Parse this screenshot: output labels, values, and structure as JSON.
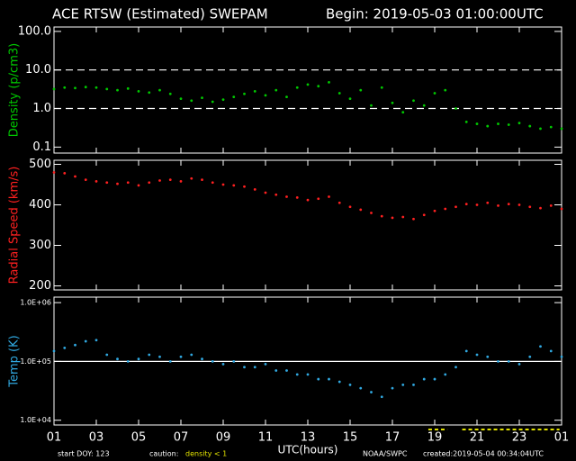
{
  "chart_data": [
    {
      "type": "scatter",
      "title": "ACE RTSW (Estimated) SWEPAM",
      "subtitle": "Begin: 2019-05-03 01:00:00UTC",
      "ylabel": "Density (p/cm3)",
      "scale": "log",
      "color": "#00c800",
      "ylim": [
        0.07,
        130
      ],
      "yticks": [
        0.1,
        {
          "value": 1,
          "label": "1.0"
        },
        {
          "value": 10,
          "label": "10.0"
        },
        {
          "value": 100,
          "label": "100.0"
        }
      ],
      "hlines": [
        10,
        1
      ],
      "hline_style": "dashed",
      "x": [
        1,
        1.5,
        2,
        2.5,
        3,
        3.5,
        4,
        4.5,
        5,
        5.5,
        6,
        6.5,
        7,
        7.5,
        8,
        8.5,
        9,
        9.5,
        10,
        10.5,
        11,
        11.5,
        12,
        12.5,
        13,
        13.5,
        14,
        14.5,
        15,
        15.5,
        16,
        16.5,
        17,
        17.5,
        18,
        18.5,
        19,
        19.5,
        20,
        20.5,
        21,
        21.5,
        22,
        22.5,
        23,
        23.5,
        24,
        24.5,
        25
      ],
      "values": [
        3.2,
        3.5,
        3.4,
        3.6,
        3.5,
        3.2,
        3.0,
        3.3,
        2.8,
        2.6,
        3.0,
        2.4,
        1.8,
        1.6,
        1.9,
        1.5,
        1.7,
        2.0,
        2.4,
        2.8,
        2.2,
        3.0,
        2.0,
        3.5,
        4.2,
        3.8,
        4.8,
        2.5,
        1.8,
        3.0,
        1.2,
        3.5,
        1.4,
        0.8,
        1.6,
        1.2,
        2.5,
        3.0,
        1.0,
        0.45,
        0.4,
        0.35,
        0.4,
        0.38,
        0.42,
        0.35,
        0.3,
        0.33,
        0.3
      ]
    },
    {
      "type": "scatter",
      "ylabel": "Radial Speed (km/s)",
      "scale": "linear",
      "color": "#ff2020",
      "ylim": [
        190,
        510
      ],
      "yticks": [
        200,
        300,
        400,
        500
      ],
      "x": [
        1,
        1.5,
        2,
        2.5,
        3,
        3.5,
        4,
        4.5,
        5,
        5.5,
        6,
        6.5,
        7,
        7.5,
        8,
        8.5,
        9,
        9.5,
        10,
        10.5,
        11,
        11.5,
        12,
        12.5,
        13,
        13.5,
        14,
        14.5,
        15,
        15.5,
        16,
        16.5,
        17,
        17.5,
        18,
        18.5,
        19,
        19.5,
        20,
        20.5,
        21,
        21.5,
        22,
        22.5,
        23,
        23.5,
        24,
        24.5,
        25
      ],
      "values": [
        480,
        478,
        470,
        462,
        458,
        455,
        452,
        455,
        448,
        455,
        460,
        462,
        458,
        465,
        462,
        455,
        450,
        448,
        445,
        438,
        430,
        425,
        420,
        418,
        412,
        415,
        420,
        405,
        395,
        388,
        380,
        372,
        368,
        370,
        365,
        375,
        385,
        390,
        395,
        402,
        400,
        405,
        398,
        402,
        400,
        395,
        392,
        398,
        390
      ]
    },
    {
      "type": "scatter",
      "ylabel": "Temp (K)",
      "xlabel": "UTC(hours)",
      "scale": "log",
      "color": "#30a8e0",
      "ylim": [
        8300,
        1240000
      ],
      "yticks": [
        {
          "value": 10000,
          "label": "1.0E+04"
        },
        {
          "value": 100000,
          "label": "1.0E+05"
        },
        {
          "value": 1000000,
          "label": "1.0E+06"
        }
      ],
      "hlines": [
        100000
      ],
      "hline_style": "solid",
      "xlim": [
        1,
        25
      ],
      "xticks": [
        {
          "value": 1,
          "label": "01"
        },
        {
          "value": 3,
          "label": "03"
        },
        {
          "value": 5,
          "label": "05"
        },
        {
          "value": 7,
          "label": "07"
        },
        {
          "value": 9,
          "label": "09"
        },
        11,
        13,
        15,
        17,
        19,
        21,
        23,
        {
          "value": 25,
          "label": "01"
        }
      ],
      "caution_intervals": [
        [
          18.7,
          19.6
        ],
        [
          20.3,
          24.9
        ]
      ],
      "caution_color": "#e0e000",
      "x": [
        1,
        1.5,
        2,
        2.5,
        3,
        3.5,
        4,
        4.5,
        5,
        5.5,
        6,
        6.5,
        7,
        7.5,
        8,
        8.5,
        9,
        9.5,
        10,
        10.5,
        11,
        11.5,
        12,
        12.5,
        13,
        13.5,
        14,
        14.5,
        15,
        15.5,
        16,
        16.5,
        17,
        17.5,
        18,
        18.5,
        19,
        19.5,
        20,
        20.5,
        21,
        21.5,
        22,
        22.5,
        23,
        23.5,
        24,
        24.5,
        25
      ],
      "values": [
        150000,
        170000,
        190000,
        220000,
        230000,
        130000,
        110000,
        100000,
        110000,
        130000,
        120000,
        100000,
        120000,
        130000,
        110000,
        100000,
        90000,
        100000,
        80000,
        80000,
        90000,
        70000,
        70000,
        60000,
        60000,
        50000,
        50000,
        45000,
        40000,
        35000,
        30000,
        25000,
        35000,
        40000,
        40000,
        50000,
        50000,
        60000,
        80000,
        150000,
        130000,
        120000,
        100000,
        100000,
        90000,
        120000,
        180000,
        150000,
        120000
      ]
    }
  ],
  "footer": {
    "start_doy": "start DOY: 123",
    "caution": "caution:",
    "caution_detail": "density < 1",
    "source": "NOAA/SWPC",
    "created": "created:2019-05-04 00:34:04UTC"
  }
}
